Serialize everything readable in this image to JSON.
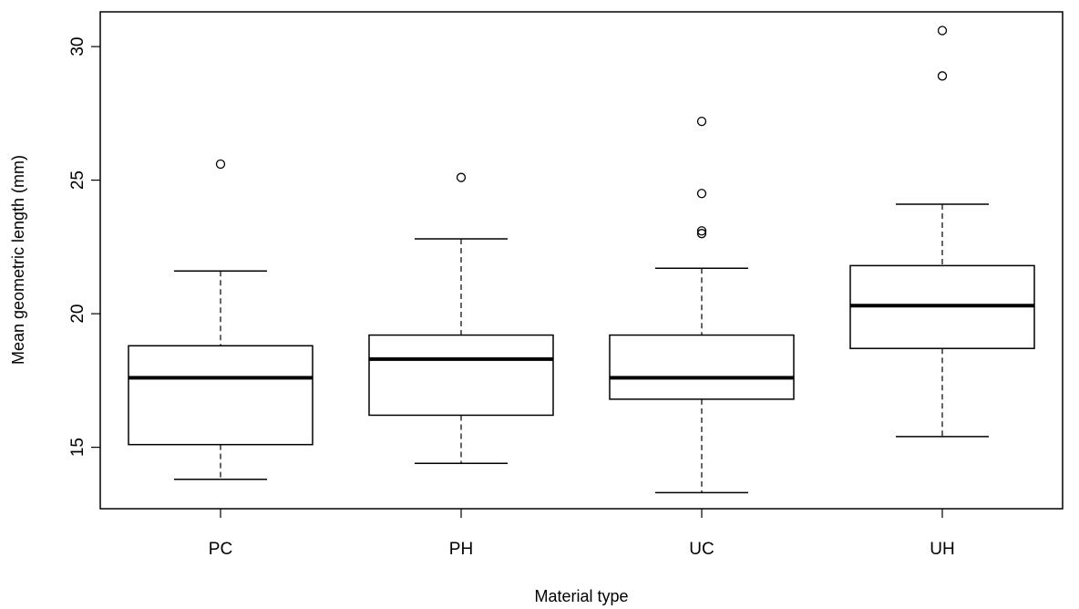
{
  "chart_data": {
    "type": "boxplot",
    "title": "",
    "xlabel": "Material type",
    "ylabel": "Mean geometric length (mm)",
    "ylim": [
      12.7,
      31.3
    ],
    "yticks": [
      15,
      20,
      25,
      30
    ],
    "grid": false,
    "categories": [
      "PC",
      "PH",
      "UC",
      "UH"
    ],
    "boxes": [
      {
        "category": "PC",
        "whisker_low": 13.8,
        "q1": 15.1,
        "median": 17.6,
        "q3": 18.8,
        "whisker_high": 21.6,
        "outliers": [
          25.6
        ]
      },
      {
        "category": "PH",
        "whisker_low": 14.4,
        "q1": 16.2,
        "median": 18.3,
        "q3": 19.2,
        "whisker_high": 22.8,
        "outliers": [
          25.1
        ]
      },
      {
        "category": "UC",
        "whisker_low": 13.3,
        "q1": 16.8,
        "median": 17.6,
        "q3": 19.2,
        "whisker_high": 21.7,
        "outliers": [
          23.0,
          23.1,
          24.5,
          27.2
        ]
      },
      {
        "category": "UH",
        "whisker_low": 15.4,
        "q1": 18.7,
        "median": 20.3,
        "q3": 21.8,
        "whisker_high": 24.1,
        "outliers": [
          28.9,
          30.6
        ]
      }
    ]
  }
}
